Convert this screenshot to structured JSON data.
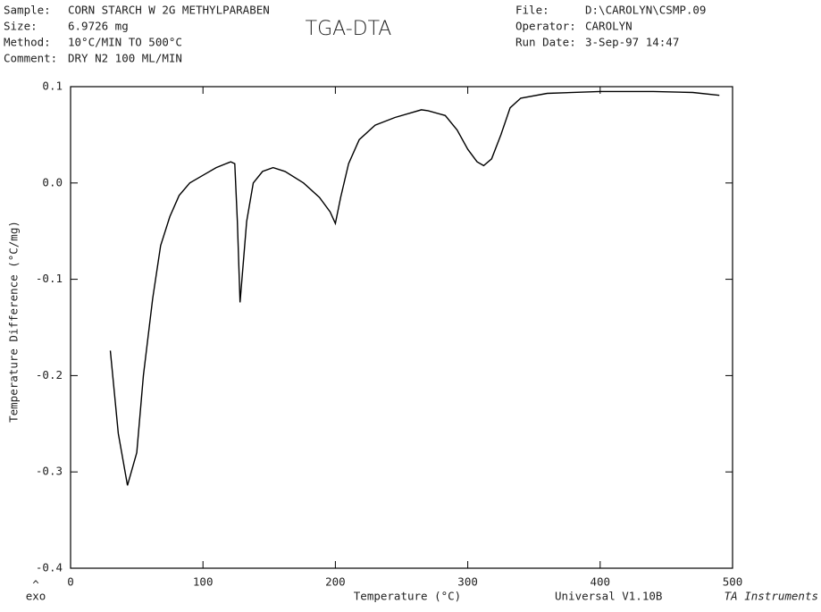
{
  "chart_data": {
    "type": "line",
    "title": "TGA-DTA",
    "info_left": [
      [
        "Sample:",
        "CORN STARCH W 2G METHYLPARABEN"
      ],
      [
        "Size:",
        "6.9726 mg"
      ],
      [
        "Method:",
        "10°C/MIN TO 500°C"
      ],
      [
        "Comment:",
        "DRY N2 100 ML/MIN"
      ]
    ],
    "info_right": [
      [
        "File:",
        "D:\\CAROLYN\\CSMP.09"
      ],
      [
        "Operator:",
        "CAROLYN"
      ],
      [
        "Run Date:",
        "3-Sep-97  14:47"
      ]
    ],
    "x_label": "Temperature (°C)",
    "y_label": "Temperature Difference (°C/mg)",
    "exo_arrow": "^",
    "exo_label": "exo",
    "footer": "Universal V1.10B",
    "footer_brand": "TA Instruments",
    "color": "#000000",
    "xlim": [
      0,
      500
    ],
    "ylim": [
      -0.4,
      0.1
    ],
    "xticks": [
      0,
      100,
      200,
      300,
      400,
      500
    ],
    "yticks": [
      0.1,
      {
        "value": 0,
        "label": "0.0"
      },
      -0.1,
      -0.2,
      -0.3,
      -0.4
    ],
    "x": [
      30,
      36,
      43,
      50,
      55,
      62,
      68,
      75,
      82,
      90,
      100,
      110,
      121,
      124,
      126,
      128,
      130,
      133,
      138,
      145,
      153,
      162,
      176,
      188,
      196,
      200,
      204,
      210,
      218,
      230,
      245,
      265,
      270,
      283,
      292,
      300,
      307,
      312,
      318,
      325,
      332,
      340,
      360,
      400,
      440,
      470,
      490
    ],
    "values": [
      -0.174,
      -0.26,
      -0.314,
      -0.28,
      -0.2,
      -0.12,
      -0.065,
      -0.035,
      -0.013,
      0.0,
      0.008,
      0.016,
      0.022,
      0.02,
      -0.04,
      -0.124,
      -0.09,
      -0.04,
      0.0,
      0.012,
      0.016,
      0.012,
      0.0,
      -0.015,
      -0.03,
      -0.042,
      -0.015,
      0.02,
      0.045,
      0.06,
      0.068,
      0.076,
      0.075,
      0.07,
      0.055,
      0.035,
      0.022,
      0.018,
      0.025,
      0.05,
      0.078,
      0.088,
      0.093,
      0.095,
      0.095,
      0.094,
      0.091
    ]
  }
}
